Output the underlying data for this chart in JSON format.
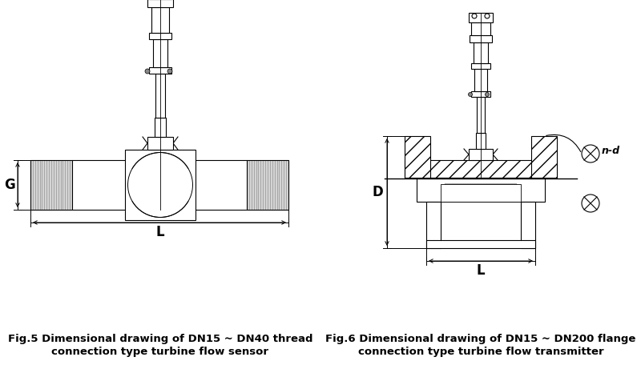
{
  "fig5_caption_line1": "Fig.5 Dimensional drawing of DN15 ~ DN40 thread",
  "fig5_caption_line2": "connection type turbine flow sensor",
  "fig6_caption_line1": "Fig.6 Dimensional drawing of DN15 ~ DN200 flange",
  "fig6_caption_line2": "connection type turbine flow transmitter",
  "bg_color": "#ffffff",
  "line_color": "#000000",
  "gray_light": "#d8d8d8",
  "gray_medium": "#b0b0b0",
  "caption_fontsize": 9.5,
  "label_fontsize": 12
}
